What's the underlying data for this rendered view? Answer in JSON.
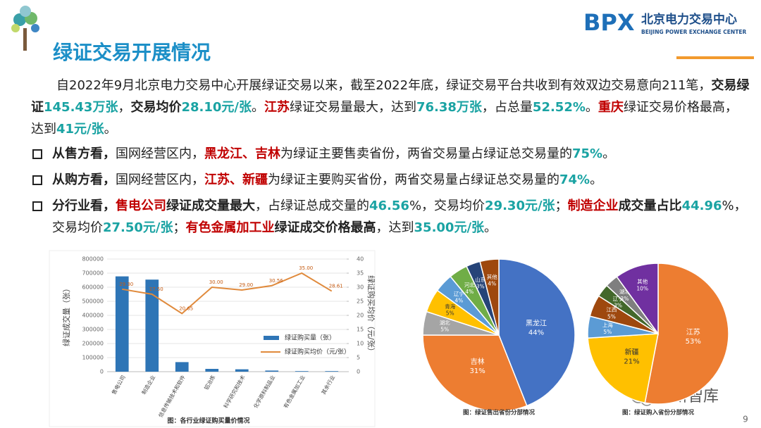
{
  "header": {
    "title": "绿证交易开展情况",
    "logo": "BPX",
    "org_cn": "北京电力交易中心",
    "org_en": "BEIJING POWER EXCHANGE CENTER"
  },
  "body": {
    "paragraphs": [
      {
        "bullet": false,
        "runs": [
          {
            "text": "自2022年9月北京电力交易中心开展绿证交易以来，截至2022年底，绿证交易平台共收到有效双边交易意向211笔，",
            "style": "plain"
          },
          {
            "text": "交易绿证",
            "style": "bold"
          },
          {
            "text": "145.43万张",
            "style": "teal"
          },
          {
            "text": "，",
            "style": "plain"
          },
          {
            "text": "交易均价",
            "style": "bold"
          },
          {
            "text": "28.10元/张",
            "style": "teal"
          },
          {
            "text": "。",
            "style": "plain"
          },
          {
            "text": "江苏",
            "style": "red"
          },
          {
            "text": "绿证交易量最大，达到",
            "style": "plain"
          },
          {
            "text": "76.38万张",
            "style": "teal"
          },
          {
            "text": "，占总量",
            "style": "plain"
          },
          {
            "text": "52.52%",
            "style": "teal"
          },
          {
            "text": "。",
            "style": "plain"
          },
          {
            "text": "重庆",
            "style": "red"
          },
          {
            "text": "绿证交易价格最高，达到",
            "style": "plain"
          },
          {
            "text": "41元/张",
            "style": "teal"
          },
          {
            "text": "。",
            "style": "plain"
          }
        ]
      },
      {
        "bullet": true,
        "runs": [
          {
            "text": "从售方看，",
            "style": "bold"
          },
          {
            "text": "国网经营区内，",
            "style": "plain"
          },
          {
            "text": "黑龙江、吉林",
            "style": "red"
          },
          {
            "text": "为绿证主要售卖省份，两省交易量占绿证总交易量的",
            "style": "plain"
          },
          {
            "text": "75%",
            "style": "teal"
          },
          {
            "text": "。",
            "style": "plain"
          }
        ]
      },
      {
        "bullet": true,
        "runs": [
          {
            "text": "从购方看，",
            "style": "bold"
          },
          {
            "text": "国网经营区内，",
            "style": "plain"
          },
          {
            "text": "江苏、新疆",
            "style": "red"
          },
          {
            "text": "为绿证主要购买省份，两省交易量占绿证总交易量的",
            "style": "plain"
          },
          {
            "text": "74%",
            "style": "teal"
          },
          {
            "text": "。",
            "style": "plain"
          }
        ]
      },
      {
        "bullet": true,
        "runs": [
          {
            "text": "分行业看，",
            "style": "bold"
          },
          {
            "text": "售电公司",
            "style": "red"
          },
          {
            "text": "绿证成交量最大",
            "style": "bold"
          },
          {
            "text": "，占绿证总成交量的",
            "style": "plain"
          },
          {
            "text": "46.56",
            "style": "teal"
          },
          {
            "text": "%，交易均价",
            "style": "plain"
          },
          {
            "text": "29.30元/张",
            "style": "teal"
          },
          {
            "text": "；",
            "style": "plain"
          },
          {
            "text": "制造企业",
            "style": "red"
          },
          {
            "text": "成交量占比",
            "style": "bold"
          },
          {
            "text": "44.96",
            "style": "teal"
          },
          {
            "text": "%，交易均价",
            "style": "plain"
          },
          {
            "text": "27.50元/张",
            "style": "teal"
          },
          {
            "text": "；",
            "style": "plain"
          },
          {
            "text": "有色金属加工业",
            "style": "red"
          },
          {
            "text": "绿证成交价格最高",
            "style": "bold"
          },
          {
            "text": "，达到",
            "style": "plain"
          },
          {
            "text": "35.00元/张",
            "style": "teal"
          },
          {
            "text": "。",
            "style": "plain"
          }
        ]
      }
    ]
  },
  "chart_data": [
    {
      "type": "bar",
      "caption": "图：各行业绿证购买量价情况",
      "y_label": "绿证成交量（张）",
      "y2_label": "绿证购买均价（元/张）",
      "categories": [
        "售电公司",
        "制造企业",
        "信息传输技术和软件",
        "铝冶炼",
        "科学研究和技术",
        "化学原料制品业",
        "有色金属加工业",
        "其余行业"
      ],
      "series": [
        {
          "name": "绿证购买量（张）",
          "type": "bar",
          "color": "#2e75b6",
          "values": [
            677000,
            654000,
            68000,
            20000,
            17000,
            8000,
            4000,
            4000
          ]
        },
        {
          "name": "绿证购买均价（元/张）",
          "type": "line",
          "axis": "y2",
          "color": "#e08a3c",
          "values": [
            29.3,
            27.5,
            20.65,
            30,
            29,
            30.56,
            35,
            28.61
          ],
          "value_labels": [
            "29.30",
            "27.50",
            "20.65",
            "30.00",
            "29.00",
            "30.56",
            "35.00",
            "28.61"
          ]
        }
      ],
      "ylim": [
        0,
        800000
      ],
      "yticks": [
        0,
        100000,
        200000,
        300000,
        400000,
        500000,
        600000,
        700000,
        800000
      ],
      "y2lim": [
        0,
        40
      ],
      "y2ticks": [
        0,
        5,
        10,
        15,
        20,
        25,
        30,
        35,
        40
      ]
    },
    {
      "type": "pie",
      "caption": "图：绿证售出省份分部情况",
      "categories": [
        "黑龙江",
        "吉林",
        "湖北",
        "青海",
        "辽宁",
        "河北",
        "山东",
        "其他"
      ],
      "values": [
        44,
        31,
        5,
        5,
        4,
        4,
        3,
        4
      ],
      "value_labels": [
        "44%",
        "31%",
        "5%",
        "5%",
        "4%",
        "4%",
        "3%",
        "4%"
      ],
      "colors": [
        "#4472c4",
        "#ed7d31",
        "#a5a5a5",
        "#ffc000",
        "#5b9bd5",
        "#70ad47",
        "#264478",
        "#9e480e"
      ]
    },
    {
      "type": "pie",
      "caption": "图：绿证购入省份分部情况",
      "categories": [
        "江苏",
        "新疆",
        "上海",
        "江西",
        "辽宁",
        "湖北",
        "其他"
      ],
      "values": [
        53,
        21,
        5,
        5,
        3,
        3,
        10
      ],
      "value_labels": [
        "53%",
        "21%",
        "5%",
        "5%",
        "3%",
        "3%",
        "10%"
      ],
      "colors": [
        "#ed7d31",
        "#ffc000",
        "#5b9bd5",
        "#9e480e",
        "#43682b",
        "#7f7f7f",
        "#7030a0"
      ]
    }
  ],
  "footer": {
    "watermark": "电新智库",
    "page": "9"
  }
}
